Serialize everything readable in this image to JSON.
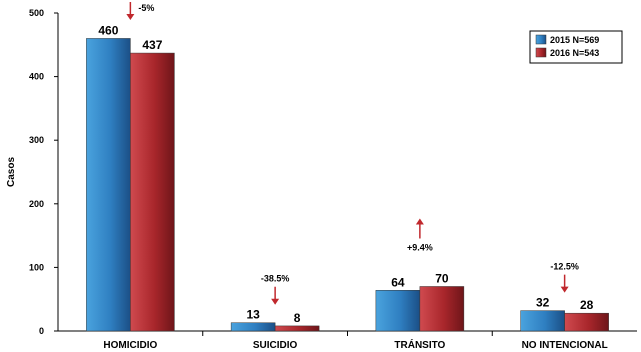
{
  "chart_data": {
    "type": "bar",
    "title": "",
    "xlabel": "",
    "ylabel": "Casos",
    "ylim": [
      0,
      500
    ],
    "yticks": [
      0,
      100,
      200,
      300,
      400,
      500
    ],
    "categories": [
      "HOMICIDIO",
      "SUICIDIO",
      "TRÁNSITO",
      "NO INTENCIONAL"
    ],
    "series": [
      {
        "name": "2015 N=569",
        "values": [
          460,
          13,
          64,
          32
        ],
        "color": "#2f7fc1"
      },
      {
        "name": "2016 N=543",
        "values": [
          437,
          8,
          70,
          28
        ],
        "color": "#a8262b"
      }
    ],
    "changes": [
      {
        "label": "-5%",
        "direction": "down"
      },
      {
        "label": "-38.5%",
        "direction": "down"
      },
      {
        "label": "+9.4%",
        "direction": "up"
      },
      {
        "label": "-12.5%",
        "direction": "down"
      }
    ],
    "legend_position": "top-right",
    "grid": false
  }
}
